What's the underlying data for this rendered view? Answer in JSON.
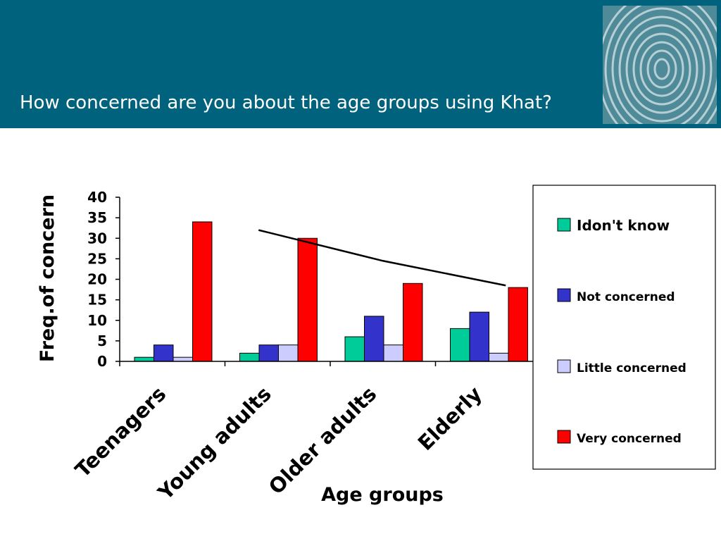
{
  "slide": {
    "title": "How concerned are you about the age groups using Khat?",
    "header_color": "#00627d"
  },
  "decor": {
    "fingerprint": "fingerprint-image"
  },
  "chart_data": {
    "type": "bar",
    "title": "",
    "xlabel": "Age groups",
    "ylabel": "Freq.of concern",
    "ylim": [
      0,
      40
    ],
    "yticks": [
      0,
      5,
      10,
      15,
      20,
      25,
      30,
      35,
      40
    ],
    "categories": [
      "Teenagers",
      "Young adults",
      "Older adults",
      "Elderly"
    ],
    "series": [
      {
        "name": "Idon't know",
        "color": "#00cc99",
        "values": [
          1,
          2,
          6,
          8
        ]
      },
      {
        "name": "Not concerned",
        "color": "#3333cc",
        "values": [
          4,
          4,
          11,
          12
        ]
      },
      {
        "name": "Little concerned",
        "color": "#ccccff",
        "values": [
          1,
          4,
          4,
          2
        ]
      },
      {
        "name": "Very concerned",
        "color": "#ff0000",
        "values": [
          34,
          30,
          19,
          18
        ]
      }
    ],
    "annotation_line": {
      "type": "trend",
      "x": [
        "Young adults",
        "Older adults",
        "Elderly"
      ],
      "y": [
        32,
        24.5,
        18.5
      ]
    },
    "legend_position": "right",
    "grid": false
  }
}
